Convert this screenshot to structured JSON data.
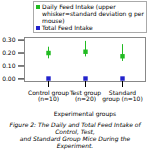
{
  "chart_data": {
    "type": "scatter",
    "categories": [
      "Control group (n=10)",
      "Test group (n=20)",
      "Standard group (n=10)"
    ],
    "series": [
      {
        "name": "Daily Feed Intake (upper\nwhisker=standard deviation g per\nmouse)",
        "color": "#22bb22",
        "marker": "square",
        "values": [
          0.2,
          0.21,
          0.175
        ],
        "error_upper": [
          0.045,
          0.08,
          0.09
        ],
        "error_lower": [
          0.045,
          0.04,
          0.04
        ]
      },
      {
        "name": "Total Feed Intake",
        "color": "#2222cc",
        "marker": "square",
        "values": [
          0.003,
          0.003,
          0.003
        ]
      }
    ],
    "xlabel": "Experimental groups",
    "ylim": [
      -0.02,
      0.32
    ],
    "yticks": [
      {
        "value": 0.0,
        "label": "0.00"
      },
      {
        "value": 0.1,
        "label": "0.10"
      },
      {
        "value": 0.2,
        "label": "0.20"
      },
      {
        "value": 0.3,
        "label": "0.30"
      }
    ],
    "legend": "upper right",
    "caption": "Figure 2: The Daily and Total Feed Intake of Control, Test,\nand Standard Group Mice During the Experiment."
  }
}
